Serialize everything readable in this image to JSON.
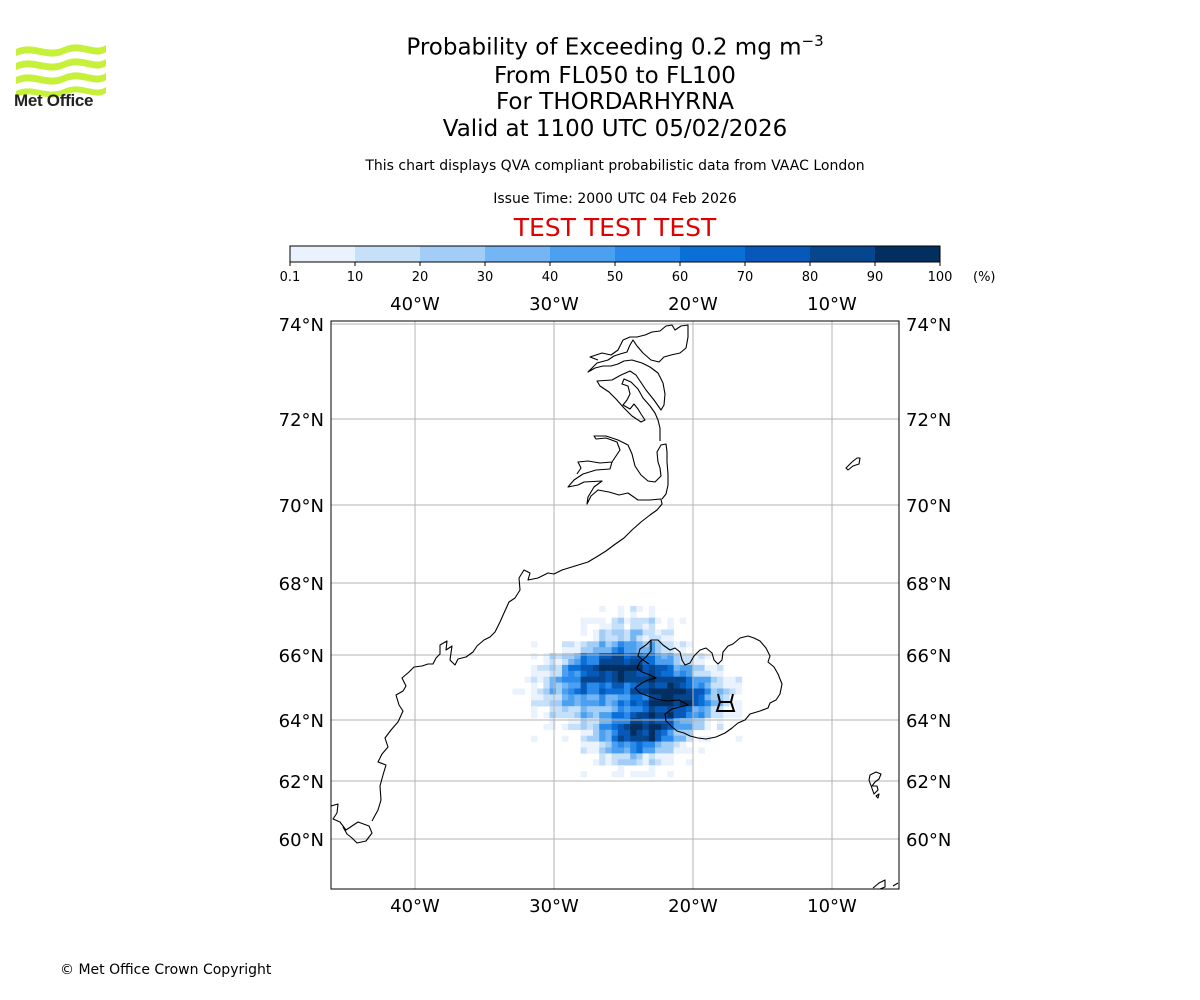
{
  "header": {
    "logo_text": "Met Office",
    "title_prefix": "Probability of Exceeding 0.2 mg m",
    "title_superscript": "−3",
    "level_range": "From FL050 to FL100",
    "volcano": "For THORDARHYRNA",
    "valid_time": "Valid at 1100 UTC 05/02/2026",
    "disclaimer": "This chart displays QVA compliant probabilistic data from VAAC London",
    "issue_time": "Issue Time: 2000 UTC 04 Feb 2026",
    "test_banner": "TEST TEST TEST"
  },
  "colorbar": {
    "ticks": [
      "0.1",
      "10",
      "20",
      "30",
      "40",
      "50",
      "60",
      "70",
      "80",
      "90",
      "100"
    ],
    "unit": "(%)",
    "colors": [
      "#eaf3fd",
      "#c6e0fa",
      "#a2cdf7",
      "#74b5f3",
      "#4ca0f0",
      "#2a8aec",
      "#0b6fd8",
      "#0659b8",
      "#05468f",
      "#032e60"
    ]
  },
  "map": {
    "lon_labels": [
      "40°W",
      "30°W",
      "20°W",
      "10°W"
    ],
    "lat_labels": [
      "74°N",
      "72°N",
      "70°N",
      "68°N",
      "66°N",
      "64°N",
      "62°N",
      "60°N"
    ],
    "volcano_symbol": "summit-marker"
  },
  "footer": {
    "copyright": "© Met Office Crown Copyright"
  }
}
